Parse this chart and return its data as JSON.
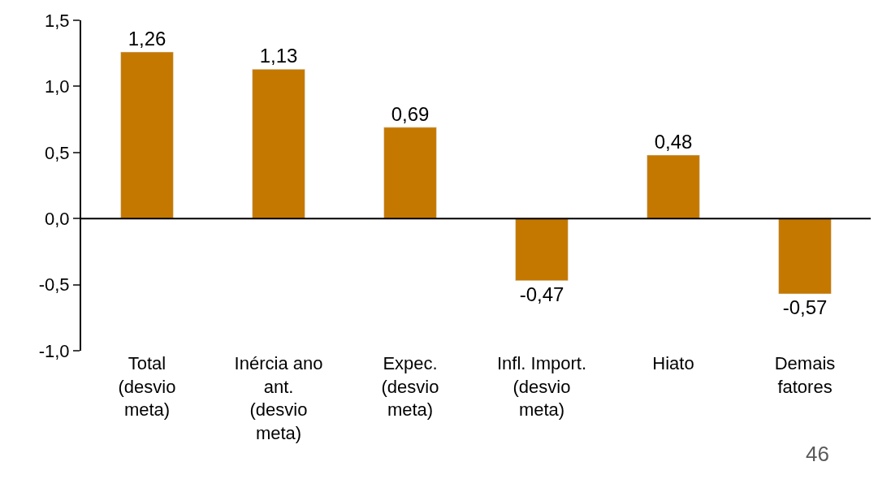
{
  "chart_data": {
    "type": "bar",
    "categories": [
      "Total\n(desvio\nmeta)",
      "Inércia ano\nant.\n(desvio\nmeta)",
      "Expec.\n(desvio\nmeta)",
      "Infl. Import.\n(desvio\nmeta)",
      "Hiato",
      "Demais\nfatores"
    ],
    "values": [
      1.26,
      1.13,
      0.69,
      -0.47,
      0.48,
      -0.57
    ],
    "value_labels": [
      "1,26",
      "1,13",
      "0,69",
      "-0,47",
      "0,48",
      "-0,57"
    ],
    "color": "#c47800",
    "ylim": [
      -1.0,
      1.5
    ],
    "yticks": [
      {
        "value": -1.0,
        "label": "-1,0"
      },
      {
        "value": -0.5,
        "label": "-0,5"
      },
      {
        "value": 0.0,
        "label": "0,0"
      },
      {
        "value": 0.5,
        "label": "0,5"
      },
      {
        "value": 1.0,
        "label": "1,0"
      },
      {
        "value": 1.5,
        "label": "1,5"
      }
    ],
    "legend": false,
    "annotations": [
      "46"
    ]
  }
}
